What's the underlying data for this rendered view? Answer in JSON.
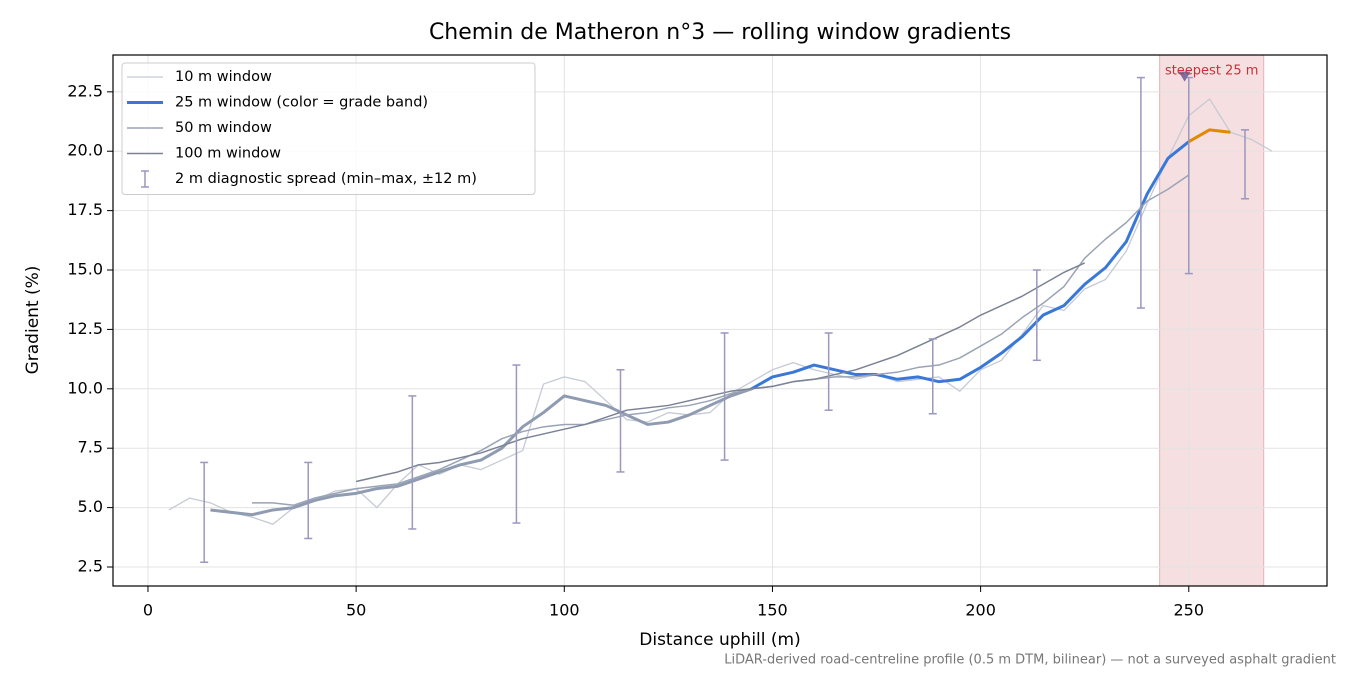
{
  "chart_data": {
    "type": "line",
    "title": "Chemin de Matheron n°3 — rolling window gradients",
    "x_label": "Distance uphill (m)",
    "y_label": "Gradient (%)",
    "footnote": "LiDAR-derived road-centreline profile (0.5 m DTM, bilinear) — not a surveyed asphalt gradient",
    "xlim": [
      -8.4,
      283.2
    ],
    "ylim": [
      1.7,
      24.05
    ],
    "xticks": [
      0,
      50,
      100,
      150,
      200,
      250
    ],
    "yticks": [
      2.5,
      {
        "value": 5,
        "label": "5.0"
      },
      7.5,
      {
        "value": 10,
        "label": "10.0"
      },
      12.5,
      {
        "value": 15,
        "label": "15.0"
      },
      17.5,
      {
        "value": 20,
        "label": "20.0"
      },
      22.5
    ],
    "grid": true,
    "legend": "upper-left",
    "series": [
      {
        "name": "10 m window",
        "color": "#c5cad4",
        "width": 1.3,
        "x": [
          5,
          10,
          15,
          20,
          25,
          30,
          35,
          40,
          45,
          50,
          55,
          60,
          65,
          70,
          75,
          80,
          85,
          90,
          95,
          100,
          105,
          110,
          115,
          120,
          125,
          130,
          135,
          140,
          145,
          150,
          155,
          160,
          165,
          170,
          175,
          180,
          185,
          190,
          195,
          200,
          205,
          210,
          215,
          220,
          225,
          230,
          235,
          240,
          245,
          250,
          255,
          260,
          265,
          270
        ],
        "values": [
          4.9,
          5.4,
          5.2,
          4.8,
          4.6,
          4.3,
          5.0,
          5.3,
          5.7,
          5.8,
          5.0,
          6.0,
          6.8,
          6.4,
          6.8,
          6.6,
          7.0,
          7.4,
          10.2,
          10.5,
          10.3,
          9.5,
          8.7,
          8.6,
          9.0,
          8.9,
          9.0,
          9.8,
          10.3,
          10.8,
          11.1,
          10.8,
          10.6,
          10.4,
          10.6,
          10.3,
          10.4,
          10.5,
          9.9,
          10.8,
          11.2,
          12.3,
          13.5,
          13.3,
          14.2,
          14.6,
          15.8,
          17.8,
          19.7,
          21.5,
          22.2,
          20.8,
          20.5,
          20.0
        ]
      },
      {
        "name": "25 m window (color = grade band)",
        "color": "#3a78d8",
        "base_color": "#8e9bb0",
        "width": 3,
        "bands": [
          {
            "min": 10,
            "color": "#3a78d8"
          },
          {
            "min": 20,
            "color": "#e08a00"
          }
        ],
        "x": [
          15,
          20,
          25,
          30,
          35,
          40,
          45,
          50,
          55,
          60,
          65,
          70,
          75,
          80,
          85,
          90,
          95,
          100,
          105,
          110,
          115,
          120,
          125,
          130,
          135,
          140,
          145,
          150,
          155,
          160,
          165,
          170,
          175,
          180,
          185,
          190,
          195,
          200,
          205,
          210,
          215,
          220,
          225,
          230,
          235,
          240,
          245,
          250,
          255,
          260
        ],
        "values": [
          4.9,
          4.8,
          4.7,
          4.9,
          5.0,
          5.3,
          5.5,
          5.6,
          5.8,
          5.9,
          6.2,
          6.5,
          6.8,
          7.0,
          7.5,
          8.4,
          9.0,
          9.7,
          9.5,
          9.3,
          8.9,
          8.5,
          8.6,
          8.9,
          9.3,
          9.7,
          10.0,
          10.5,
          10.7,
          11.0,
          10.8,
          10.6,
          10.6,
          10.4,
          10.5,
          10.3,
          10.4,
          10.9,
          11.5,
          12.2,
          13.1,
          13.5,
          14.4,
          15.1,
          16.2,
          18.2,
          19.7,
          20.4,
          20.9,
          20.8
        ]
      },
      {
        "name": "50 m window",
        "color": "#9aa3b5",
        "width": 1.5,
        "x": [
          25,
          30,
          35,
          40,
          45,
          50,
          55,
          60,
          65,
          70,
          75,
          80,
          85,
          90,
          95,
          100,
          105,
          110,
          115,
          120,
          125,
          130,
          135,
          140,
          145,
          150,
          155,
          160,
          165,
          170,
          175,
          180,
          185,
          190,
          195,
          200,
          205,
          210,
          215,
          220,
          225,
          230,
          235,
          240,
          245,
          250
        ],
        "values": [
          5.2,
          5.2,
          5.1,
          5.4,
          5.6,
          5.8,
          5.9,
          6.0,
          6.3,
          6.6,
          7.0,
          7.4,
          7.9,
          8.2,
          8.4,
          8.5,
          8.5,
          8.7,
          8.9,
          9.0,
          9.2,
          9.3,
          9.5,
          9.8,
          10.0,
          10.1,
          10.3,
          10.4,
          10.5,
          10.5,
          10.6,
          10.7,
          10.9,
          11.0,
          11.3,
          11.8,
          12.3,
          13.0,
          13.6,
          14.3,
          15.5,
          16.3,
          17.0,
          17.9,
          18.4,
          19.0
        ]
      },
      {
        "name": "100 m window",
        "color": "#7a8294",
        "width": 1.5,
        "x": [
          50,
          55,
          60,
          65,
          70,
          75,
          80,
          85,
          90,
          95,
          100,
          105,
          110,
          115,
          120,
          125,
          130,
          135,
          140,
          145,
          150,
          155,
          160,
          165,
          170,
          175,
          180,
          185,
          190,
          195,
          200,
          205,
          210,
          215,
          220,
          225
        ],
        "values": [
          6.1,
          6.3,
          6.5,
          6.8,
          6.9,
          7.1,
          7.3,
          7.6,
          7.9,
          8.1,
          8.3,
          8.5,
          8.8,
          9.1,
          9.2,
          9.3,
          9.5,
          9.7,
          9.9,
          10.0,
          10.1,
          10.3,
          10.4,
          10.6,
          10.8,
          11.1,
          11.4,
          11.8,
          12.2,
          12.6,
          13.1,
          13.5,
          13.9,
          14.4,
          14.9,
          15.3
        ]
      }
    ],
    "error_bars": {
      "name": "2 m diagnostic spread (min–max, ±12 m)",
      "color": "#9a97c0",
      "x": [
        13.5,
        38.5,
        63.5,
        88.5,
        113.5,
        138.5,
        163.5,
        188.5,
        213.5,
        238.5,
        250,
        263.5
      ],
      "low": [
        2.7,
        3.7,
        4.1,
        4.35,
        6.5,
        7.0,
        9.1,
        8.95,
        11.2,
        13.4,
        14.85,
        18.0
      ],
      "high": [
        6.9,
        6.9,
        9.7,
        11.0,
        10.8,
        12.35,
        12.35,
        12.1,
        15.0,
        23.1,
        23.1,
        20.9
      ]
    },
    "span": {
      "x": [
        243,
        268
      ],
      "color": "#e3a3aa"
    },
    "annotation": {
      "text": "steepest 25 m",
      "x": 249,
      "y": 23.1,
      "color": "#c8303c"
    }
  }
}
